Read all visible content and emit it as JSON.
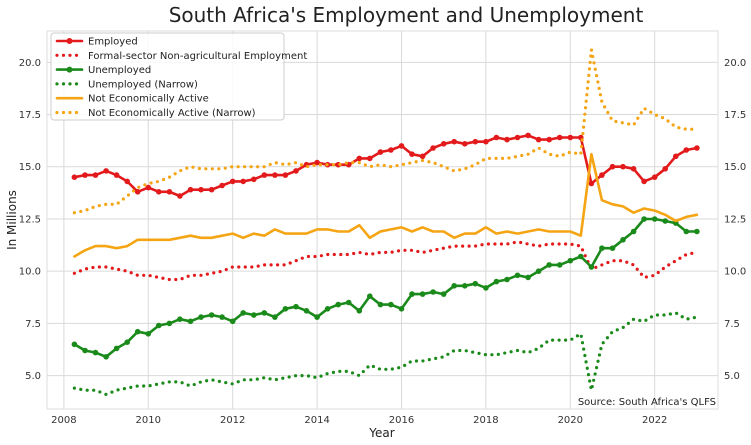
{
  "chart_data": {
    "type": "line",
    "title": "South Africa's Employment and Unemployment",
    "xlabel": "Year",
    "ylabel": "In Millions",
    "source": "Source: South Africa's QLFS",
    "xlim": [
      2007.6,
      2023.5
    ],
    "ylim": [
      3.4,
      21.5
    ],
    "xticks": [
      "2008",
      "2010",
      "2012",
      "2014",
      "2016",
      "2018",
      "2020",
      "2022"
    ],
    "yticks": [
      "5.0",
      "7.5",
      "10.0",
      "12.5",
      "15.0",
      "17.5",
      "20.0"
    ],
    "grid": true,
    "legend_position": "top-left",
    "series": [
      {
        "name": "Employed",
        "color": "#e31a1c",
        "style": "solid-markers",
        "x": [
          2008.25,
          2008.5,
          2008.75,
          2009,
          2009.25,
          2009.5,
          2009.75,
          2010,
          2010.25,
          2010.5,
          2010.75,
          2011,
          2011.25,
          2011.5,
          2011.75,
          2012,
          2012.25,
          2012.5,
          2012.75,
          2013,
          2013.25,
          2013.5,
          2013.75,
          2014,
          2014.25,
          2014.5,
          2014.75,
          2015,
          2015.25,
          2015.5,
          2015.75,
          2016,
          2016.25,
          2016.5,
          2016.75,
          2017,
          2017.25,
          2017.5,
          2017.75,
          2018,
          2018.25,
          2018.5,
          2018.75,
          2019,
          2019.25,
          2019.5,
          2019.75,
          2020,
          2020.25,
          2020.5,
          2020.75,
          2021,
          2021.25,
          2021.5,
          2021.75,
          2022,
          2022.25,
          2022.5,
          2022.75,
          2023
        ],
        "values": [
          14.5,
          14.6,
          14.6,
          14.8,
          14.6,
          14.3,
          13.8,
          14.0,
          13.8,
          13.8,
          13.6,
          13.9,
          13.9,
          13.9,
          14.1,
          14.3,
          14.3,
          14.4,
          14.6,
          14.6,
          14.6,
          14.8,
          15.1,
          15.2,
          15.1,
          15.1,
          15.1,
          15.4,
          15.4,
          15.7,
          15.8,
          16.0,
          15.6,
          15.5,
          15.9,
          16.1,
          16.2,
          16.1,
          16.2,
          16.2,
          16.4,
          16.3,
          16.4,
          16.5,
          16.3,
          16.3,
          16.4,
          16.4,
          16.4,
          14.2,
          14.6,
          15.0,
          15.0,
          14.9,
          14.3,
          14.5,
          14.9,
          15.5,
          15.8,
          15.9
        ]
      },
      {
        "name": "Formal-sector Non-agricultural Employment",
        "color": "#e31a1c",
        "style": "dotted",
        "x": [
          2008.25,
          2008.5,
          2008.75,
          2009,
          2009.25,
          2009.5,
          2009.75,
          2010,
          2010.25,
          2010.5,
          2010.75,
          2011,
          2011.25,
          2011.5,
          2011.75,
          2012,
          2012.25,
          2012.5,
          2012.75,
          2013,
          2013.25,
          2013.5,
          2013.75,
          2014,
          2014.25,
          2014.5,
          2014.75,
          2015,
          2015.25,
          2015.5,
          2015.75,
          2016,
          2016.25,
          2016.5,
          2016.75,
          2017,
          2017.25,
          2017.5,
          2017.75,
          2018,
          2018.25,
          2018.5,
          2018.75,
          2019,
          2019.25,
          2019.5,
          2019.75,
          2020,
          2020.25,
          2020.5,
          2020.75,
          2021,
          2021.25,
          2021.5,
          2021.75,
          2022,
          2022.25,
          2022.5,
          2022.75,
          2023
        ],
        "values": [
          9.9,
          10.1,
          10.2,
          10.2,
          10.1,
          10.0,
          9.8,
          9.8,
          9.7,
          9.6,
          9.6,
          9.8,
          9.8,
          9.9,
          10.0,
          10.2,
          10.2,
          10.2,
          10.3,
          10.3,
          10.3,
          10.5,
          10.7,
          10.7,
          10.8,
          10.8,
          10.8,
          10.9,
          10.8,
          10.9,
          10.9,
          11.0,
          11.0,
          10.9,
          11.0,
          11.1,
          11.2,
          11.2,
          11.2,
          11.3,
          11.3,
          11.3,
          11.4,
          11.3,
          11.2,
          11.3,
          11.3,
          11.3,
          11.2,
          10.1,
          10.3,
          10.5,
          10.5,
          10.3,
          9.7,
          9.8,
          10.2,
          10.5,
          10.8,
          10.9
        ]
      },
      {
        "name": "Unemployed",
        "color": "#1a8a1a",
        "style": "solid-markers",
        "x": [
          2008.25,
          2008.5,
          2008.75,
          2009,
          2009.25,
          2009.5,
          2009.75,
          2010,
          2010.25,
          2010.5,
          2010.75,
          2011,
          2011.25,
          2011.5,
          2011.75,
          2012,
          2012.25,
          2012.5,
          2012.75,
          2013,
          2013.25,
          2013.5,
          2013.75,
          2014,
          2014.25,
          2014.5,
          2014.75,
          2015,
          2015.25,
          2015.5,
          2015.75,
          2016,
          2016.25,
          2016.5,
          2016.75,
          2017,
          2017.25,
          2017.5,
          2017.75,
          2018,
          2018.25,
          2018.5,
          2018.75,
          2019,
          2019.25,
          2019.5,
          2019.75,
          2020,
          2020.25,
          2020.5,
          2020.75,
          2021,
          2021.25,
          2021.5,
          2021.75,
          2022,
          2022.25,
          2022.5,
          2022.75,
          2023
        ],
        "values": [
          6.5,
          6.2,
          6.1,
          5.9,
          6.3,
          6.6,
          7.1,
          7.0,
          7.4,
          7.5,
          7.7,
          7.6,
          7.8,
          7.9,
          7.8,
          7.6,
          8.0,
          7.9,
          8.0,
          7.8,
          8.2,
          8.3,
          8.1,
          7.8,
          8.2,
          8.4,
          8.5,
          8.1,
          8.8,
          8.4,
          8.4,
          8.2,
          8.9,
          8.9,
          9.0,
          8.9,
          9.3,
          9.3,
          9.4,
          9.2,
          9.5,
          9.6,
          9.8,
          9.7,
          10.0,
          10.3,
          10.3,
          10.5,
          10.7,
          10.2,
          11.1,
          11.1,
          11.5,
          11.9,
          12.5,
          12.5,
          12.4,
          12.3,
          11.9,
          11.9
        ]
      },
      {
        "name": "Unemployed (Narrow)",
        "color": "#1a8a1a",
        "style": "dotted",
        "x": [
          2008.25,
          2008.5,
          2008.75,
          2009,
          2009.25,
          2009.5,
          2009.75,
          2010,
          2010.25,
          2010.5,
          2010.75,
          2011,
          2011.25,
          2011.5,
          2011.75,
          2012,
          2012.25,
          2012.5,
          2012.75,
          2013,
          2013.25,
          2013.5,
          2013.75,
          2014,
          2014.25,
          2014.5,
          2014.75,
          2015,
          2015.25,
          2015.5,
          2015.75,
          2016,
          2016.25,
          2016.5,
          2016.75,
          2017,
          2017.25,
          2017.5,
          2017.75,
          2018,
          2018.25,
          2018.5,
          2018.75,
          2019,
          2019.25,
          2019.5,
          2019.75,
          2020,
          2020.25,
          2020.5,
          2020.75,
          2021,
          2021.25,
          2021.5,
          2021.75,
          2022,
          2022.25,
          2022.5,
          2022.75,
          2023
        ],
        "values": [
          4.4,
          4.3,
          4.3,
          4.1,
          4.3,
          4.4,
          4.5,
          4.5,
          4.6,
          4.7,
          4.7,
          4.5,
          4.7,
          4.8,
          4.7,
          4.6,
          4.8,
          4.8,
          4.9,
          4.8,
          4.9,
          5.0,
          5.0,
          4.9,
          5.1,
          5.2,
          5.2,
          5.0,
          5.5,
          5.3,
          5.3,
          5.4,
          5.7,
          5.7,
          5.8,
          5.9,
          6.2,
          6.2,
          6.1,
          6.0,
          6.0,
          6.1,
          6.2,
          6.1,
          6.3,
          6.7,
          6.7,
          6.7,
          7.0,
          4.3,
          6.5,
          7.1,
          7.3,
          7.7,
          7.6,
          7.9,
          7.9,
          8.0,
          7.7,
          7.8
        ]
      },
      {
        "name": "Not Economically Active",
        "color": "#f5a514",
        "style": "solid",
        "x": [
          2008.25,
          2008.5,
          2008.75,
          2009,
          2009.25,
          2009.5,
          2009.75,
          2010,
          2010.25,
          2010.5,
          2010.75,
          2011,
          2011.25,
          2011.5,
          2011.75,
          2012,
          2012.25,
          2012.5,
          2012.75,
          2013,
          2013.25,
          2013.5,
          2013.75,
          2014,
          2014.25,
          2014.5,
          2014.75,
          2015,
          2015.25,
          2015.5,
          2015.75,
          2016,
          2016.25,
          2016.5,
          2016.75,
          2017,
          2017.25,
          2017.5,
          2017.75,
          2018,
          2018.25,
          2018.5,
          2018.75,
          2019,
          2019.25,
          2019.5,
          2019.75,
          2020,
          2020.25,
          2020.5,
          2020.75,
          2021,
          2021.25,
          2021.5,
          2021.75,
          2022,
          2022.25,
          2022.5,
          2022.75,
          2023
        ],
        "values": [
          10.7,
          11.0,
          11.2,
          11.2,
          11.1,
          11.2,
          11.5,
          11.5,
          11.5,
          11.5,
          11.6,
          11.7,
          11.6,
          11.6,
          11.7,
          11.8,
          11.6,
          11.8,
          11.7,
          12.0,
          11.8,
          11.8,
          11.8,
          12.0,
          12.0,
          11.9,
          11.9,
          12.2,
          11.6,
          11.9,
          12.0,
          12.1,
          11.9,
          12.1,
          11.9,
          11.9,
          11.6,
          11.8,
          11.8,
          12.1,
          11.8,
          11.9,
          11.8,
          11.9,
          12.0,
          11.9,
          11.9,
          11.9,
          11.7,
          15.6,
          13.4,
          13.2,
          13.1,
          12.8,
          13.0,
          12.9,
          12.7,
          12.4,
          12.6,
          12.7
        ]
      },
      {
        "name": "Not Economically Active (Narrow)",
        "color": "#f5a514",
        "style": "dotted",
        "x": [
          2008.25,
          2008.5,
          2008.75,
          2009,
          2009.25,
          2009.5,
          2009.75,
          2010,
          2010.25,
          2010.5,
          2010.75,
          2011,
          2011.25,
          2011.5,
          2011.75,
          2012,
          2012.25,
          2012.5,
          2012.75,
          2013,
          2013.25,
          2013.5,
          2013.75,
          2014,
          2014.25,
          2014.5,
          2014.75,
          2015,
          2015.25,
          2015.5,
          2015.75,
          2016,
          2016.25,
          2016.5,
          2016.75,
          2017,
          2017.25,
          2017.5,
          2017.75,
          2018,
          2018.25,
          2018.5,
          2018.75,
          2019,
          2019.25,
          2019.5,
          2019.75,
          2020,
          2020.25,
          2020.5,
          2020.75,
          2021,
          2021.25,
          2021.5,
          2021.75,
          2022,
          2022.25,
          2022.5,
          2022.75,
          2023
        ],
        "values": [
          12.8,
          12.9,
          13.1,
          13.2,
          13.2,
          13.6,
          14.0,
          14.2,
          14.3,
          14.5,
          14.8,
          15.0,
          14.9,
          14.9,
          14.9,
          15.0,
          15.0,
          15.0,
          15.0,
          15.2,
          15.1,
          15.2,
          15.0,
          15.1,
          15.1,
          15.1,
          15.2,
          15.2,
          15.0,
          15.1,
          15.0,
          15.1,
          15.2,
          15.3,
          15.2,
          15.0,
          14.8,
          14.9,
          15.1,
          15.4,
          15.4,
          15.4,
          15.5,
          15.6,
          15.9,
          15.6,
          15.5,
          15.7,
          15.6,
          20.6,
          18.1,
          17.2,
          17.1,
          17.0,
          17.8,
          17.5,
          17.3,
          16.9,
          16.8,
          16.8
        ]
      }
    ]
  }
}
